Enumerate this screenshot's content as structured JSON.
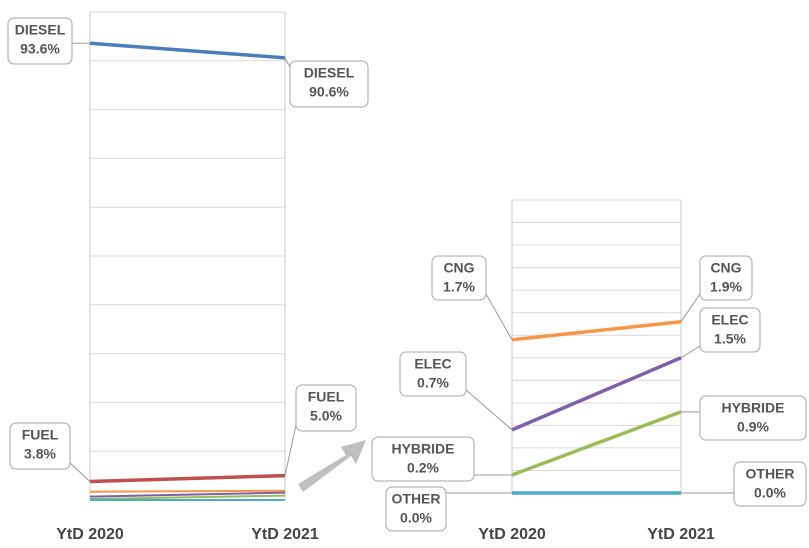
{
  "chart_data": [
    {
      "type": "line",
      "categories": [
        "YtD 2020",
        "YtD 2021"
      ],
      "series": [
        {
          "name": "DIESEL",
          "color": "#4a7ebb",
          "values": [
            93.6,
            90.6
          ],
          "value_labels": [
            "93.6%",
            "90.6%"
          ]
        },
        {
          "name": "FUEL",
          "color": "#c0504d",
          "values": [
            3.8,
            5.0
          ],
          "value_labels": [
            "3.8%",
            "5.0%"
          ]
        }
      ],
      "ylim": [
        0,
        100
      ],
      "yticks": [
        0,
        10,
        20,
        30,
        40,
        50,
        60,
        70,
        80,
        90,
        100
      ],
      "grid": true
    },
    {
      "type": "line",
      "categories": [
        "YtD 2020",
        "YtD 2021"
      ],
      "series": [
        {
          "name": "CNG",
          "color": "#f79646",
          "values": [
            1.7,
            1.9
          ],
          "value_labels": [
            "1.7%",
            "1.9%"
          ]
        },
        {
          "name": "ELEC",
          "color": "#7f5fa8",
          "values": [
            0.7,
            1.5
          ],
          "value_labels": [
            "0.7%",
            "1.5%"
          ]
        },
        {
          "name": "HYBRIDE",
          "color": "#9bbb59",
          "values": [
            0.2,
            0.9
          ],
          "value_labels": [
            "0.2%",
            "0.9%"
          ]
        },
        {
          "name": "OTHER",
          "color": "#4bacc6",
          "values": [
            0.0,
            0.0
          ],
          "value_labels": [
            "0.0%",
            "0.0%"
          ]
        }
      ],
      "ylim": [
        0,
        3.25
      ],
      "yticks": [
        0,
        0.25,
        0.5,
        0.75,
        1,
        1.25,
        1.5,
        1.75,
        2,
        2.25,
        2.5,
        2.75,
        3,
        3.25
      ],
      "grid": true
    }
  ]
}
